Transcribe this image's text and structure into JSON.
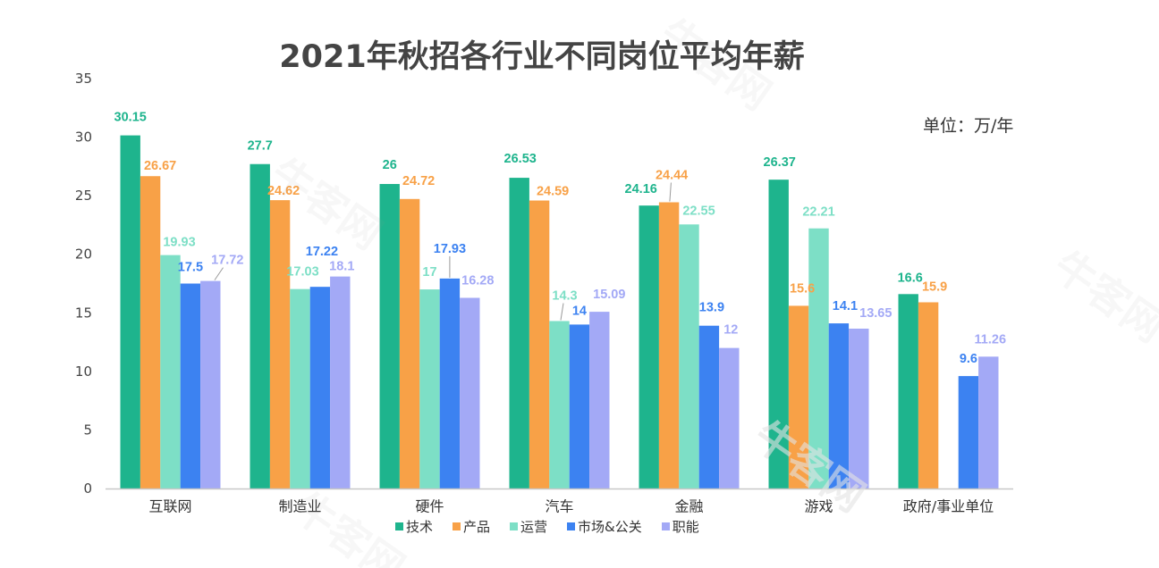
{
  "chart_data": {
    "type": "bar",
    "title": "2021年秋招各行业不同岗位平均年薪",
    "unit_label": "单位：万/年",
    "categories": [
      "互联网",
      "制造业",
      "硬件",
      "汽车",
      "金融",
      "游戏",
      "政府/事业单位"
    ],
    "series": [
      {
        "name": "技术",
        "color": "#1eb48d",
        "values": [
          30.15,
          27.7,
          26,
          26.53,
          24.16,
          26.37,
          16.6
        ]
      },
      {
        "name": "产品",
        "color": "#f8a147",
        "values": [
          26.67,
          24.62,
          24.72,
          24.59,
          24.44,
          15.6,
          15.9
        ]
      },
      {
        "name": "运营",
        "color": "#7ddfc6",
        "values": [
          19.93,
          17.03,
          17,
          14.3,
          22.55,
          22.21,
          null
        ]
      },
      {
        "name": "市场&公关",
        "color": "#3c82f1",
        "values": [
          17.5,
          17.22,
          17.93,
          14,
          13.9,
          14.1,
          9.6
        ]
      },
      {
        "name": "职能",
        "color": "#a3a9f6",
        "values": [
          17.72,
          18.1,
          16.28,
          15.09,
          12,
          13.65,
          11.26
        ]
      }
    ],
    "ylim": [
      0,
      35
    ],
    "yticks": [
      0,
      5,
      10,
      15,
      20,
      25,
      30,
      35
    ],
    "grid": false,
    "legend": "bottom"
  },
  "watermark": {
    "text": "牛客网"
  }
}
